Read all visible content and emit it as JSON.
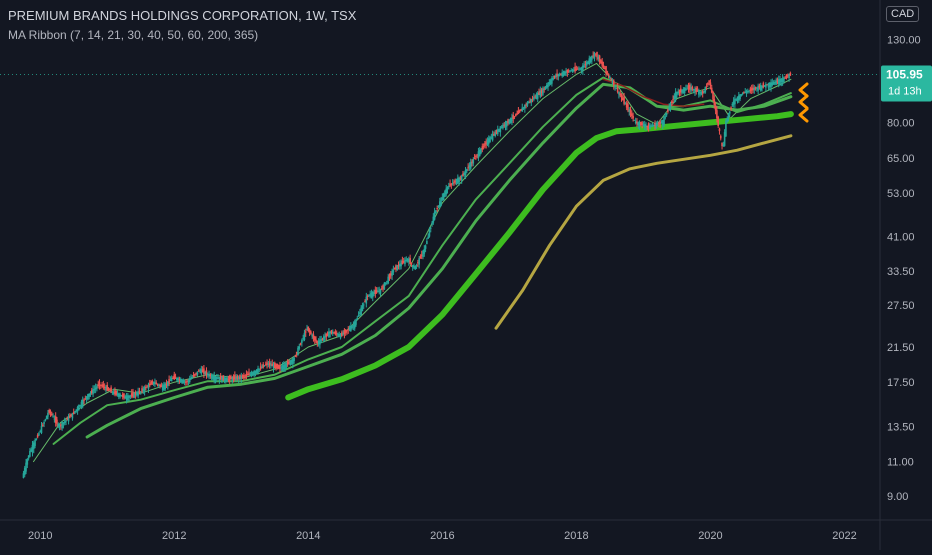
{
  "header": {
    "title": "PREMIUM BRANDS HOLDINGS CORPORATION, 1W, TSX",
    "indicator": "MA Ribbon (7, 14, 21, 30, 40, 50, 60, 200, 365)"
  },
  "currency": "CAD",
  "price_label": {
    "value": "105.95",
    "countdown": "1d 13h"
  },
  "colors": {
    "background": "#131722",
    "up": "#26a69a",
    "down": "#ef5350",
    "ma_green": "#4caf50",
    "ma_thick": "#3dbd1f",
    "ma_gold": "#b5a642",
    "ma_dark_red": "#8b1e1e",
    "price_badge": "#2bb8a0",
    "arrow": "#ff9800"
  },
  "chart_data": {
    "type": "line",
    "title": "PREMIUM BRANDS HOLDINGS CORPORATION, 1W, TSX",
    "y_scale": "log",
    "ylim": [
      8.0,
      160.0
    ],
    "xlim": [
      2009.4,
      2022.5
    ],
    "x_ticks": [
      "2010",
      "2012",
      "2014",
      "2016",
      "2018",
      "2020",
      "2022"
    ],
    "y_ticks": [
      "9.00",
      "11.00",
      "13.50",
      "17.50",
      "21.50",
      "27.50",
      "33.50",
      "41.00",
      "53.00",
      "65.00",
      "80.00",
      "130.00"
    ],
    "last_price": 105.95,
    "series": [
      {
        "name": "Price",
        "x": [
          2009.75,
          2009.85,
          2010.0,
          2010.15,
          2010.3,
          2010.5,
          2010.7,
          2010.9,
          2011.1,
          2011.3,
          2011.5,
          2011.7,
          2011.85,
          2012.0,
          2012.2,
          2012.4,
          2012.6,
          2012.8,
          2013.0,
          2013.2,
          2013.4,
          2013.6,
          2013.8,
          2014.0,
          2014.15,
          2014.35,
          2014.5,
          2014.7,
          2014.9,
          2015.1,
          2015.3,
          2015.5,
          2015.6,
          2015.75,
          2015.9,
          2016.1,
          2016.3,
          2016.5,
          2016.7,
          2016.9,
          2017.1,
          2017.3,
          2017.5,
          2017.7,
          2017.9,
          2018.1,
          2018.3,
          2018.5,
          2018.7,
          2018.9,
          2019.1,
          2019.3,
          2019.5,
          2019.7,
          2019.9,
          2020.0,
          2020.1,
          2020.2,
          2020.25,
          2020.35,
          2020.5,
          2020.7,
          2020.9,
          2021.1,
          2021.2
        ],
        "values": [
          10.0,
          11.5,
          13.0,
          14.8,
          13.5,
          14.5,
          16.0,
          17.3,
          16.5,
          16.0,
          16.5,
          17.5,
          17.0,
          18.0,
          17.5,
          18.8,
          18.0,
          17.8,
          18.0,
          18.5,
          19.5,
          19.0,
          20.0,
          24.0,
          22.0,
          23.5,
          23.0,
          24.5,
          29.0,
          30.0,
          34.0,
          36.0,
          34.0,
          38.0,
          47.0,
          55.0,
          58.0,
          65.0,
          72.0,
          78.0,
          83.0,
          90.0,
          96.0,
          105.0,
          108.0,
          110.0,
          120.0,
          105.0,
          92.0,
          80.0,
          78.0,
          80.0,
          95.0,
          98.0,
          95.0,
          102.0,
          85.0,
          68.0,
          80.0,
          90.0,
          95.0,
          98.0,
          100.0,
          103.0,
          105.95
        ]
      },
      {
        "name": "MA 7",
        "x": [
          2009.9,
          2010.3,
          2010.7,
          2011.1,
          2011.5,
          2012.0,
          2012.5,
          2013.0,
          2013.5,
          2014.0,
          2014.5,
          2015.0,
          2015.5,
          2016.0,
          2016.5,
          2017.0,
          2017.5,
          2018.0,
          2018.3,
          2018.6,
          2018.9,
          2019.2,
          2019.5,
          2019.8,
          2020.0,
          2020.3,
          2020.6,
          2021.0,
          2021.2
        ],
        "values": [
          11.0,
          13.8,
          15.5,
          16.8,
          16.4,
          17.5,
          18.3,
          17.9,
          18.9,
          21.5,
          23.0,
          28.0,
          34.0,
          50.0,
          62.0,
          76.0,
          92.0,
          106.0,
          113.0,
          100.0,
          84.0,
          79.0,
          92.0,
          96.0,
          98.0,
          82.0,
          92.0,
          99.0,
          103.0
        ]
      },
      {
        "name": "MA 30",
        "x": [
          2010.2,
          2010.6,
          2011.0,
          2011.5,
          2012.0,
          2012.5,
          2013.0,
          2013.5,
          2014.0,
          2014.5,
          2015.0,
          2015.5,
          2016.0,
          2016.5,
          2017.0,
          2017.5,
          2018.0,
          2018.4,
          2018.8,
          2019.2,
          2019.6,
          2020.0,
          2020.4,
          2020.8,
          2021.2
        ],
        "values": [
          12.2,
          13.8,
          15.3,
          15.8,
          16.7,
          17.6,
          17.6,
          18.3,
          20.0,
          21.5,
          25.0,
          29.0,
          39.0,
          51.0,
          63.0,
          78.0,
          94.0,
          104.0,
          97.0,
          88.0,
          88.0,
          91.0,
          85.0,
          89.0,
          95.0
        ]
      },
      {
        "name": "MA 50",
        "x": [
          2010.7,
          2011.0,
          2011.5,
          2012.0,
          2012.5,
          2013.0,
          2013.5,
          2014.0,
          2014.5,
          2015.0,
          2015.5,
          2016.0,
          2016.5,
          2017.0,
          2017.5,
          2018.0,
          2018.4,
          2018.8,
          2019.2,
          2019.6,
          2020.0,
          2020.4,
          2020.8,
          2021.2
        ],
        "values": [
          12.7,
          13.6,
          15.0,
          16.0,
          17.0,
          17.3,
          17.9,
          19.2,
          20.6,
          23.0,
          27.0,
          34.0,
          45.0,
          57.0,
          71.0,
          87.0,
          100.0,
          98.0,
          88.0,
          86.0,
          88.0,
          86.0,
          88.0,
          93.0
        ]
      },
      {
        "name": "MA 60",
        "x": [
          2018.4,
          2018.7,
          2019.0,
          2019.3,
          2019.6,
          2019.9
        ],
        "values": [
          103.0,
          99.0,
          93.0,
          89.0,
          88.0,
          89.0
        ]
      },
      {
        "name": "MA 200",
        "x": [
          2013.7,
          2014.0,
          2014.5,
          2015.0,
          2015.5,
          2016.0,
          2016.5,
          2017.0,
          2017.5,
          2018.0,
          2018.3,
          2018.6,
          2019.0,
          2019.5,
          2020.0,
          2020.5,
          2021.0,
          2021.2
        ],
        "values": [
          16.0,
          16.8,
          17.8,
          19.3,
          21.5,
          26.0,
          33.0,
          42.0,
          54.0,
          67.0,
          73.0,
          76.0,
          77.0,
          78.5,
          80.0,
          81.5,
          83.0,
          84.0
        ]
      },
      {
        "name": "MA 365",
        "x": [
          2016.8,
          2017.2,
          2017.6,
          2018.0,
          2018.4,
          2018.8,
          2019.2,
          2019.6,
          2020.0,
          2020.4,
          2020.8,
          2021.2
        ],
        "values": [
          24.0,
          30.0,
          39.0,
          49.0,
          57.0,
          61.0,
          63.0,
          64.5,
          66.0,
          68.0,
          71.0,
          74.0
        ]
      }
    ]
  }
}
